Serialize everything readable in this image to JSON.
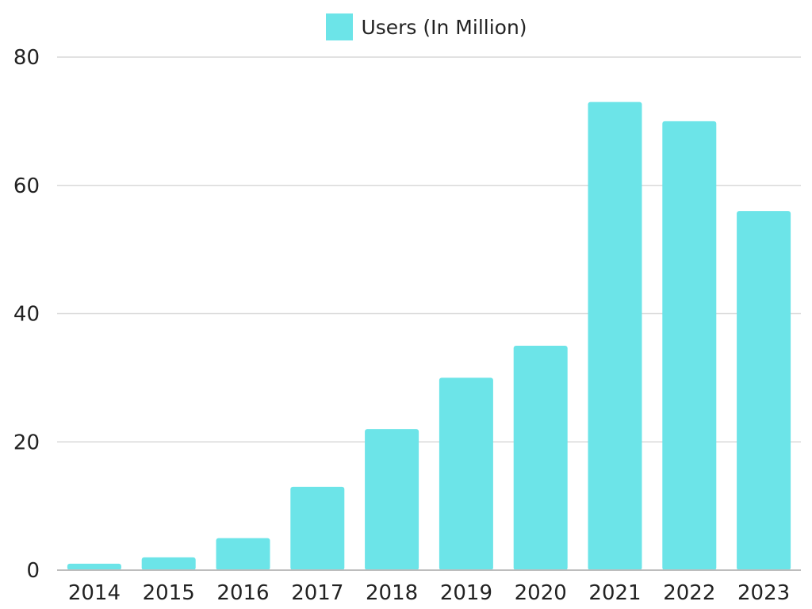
{
  "chart_data": {
    "type": "bar",
    "categories": [
      "2014",
      "2015",
      "2016",
      "2017",
      "2018",
      "2019",
      "2020",
      "2021",
      "2022",
      "2023"
    ],
    "series": [
      {
        "name": "Users (In Million)",
        "values": [
          1,
          2,
          5,
          13,
          22,
          30,
          35,
          73,
          70,
          56
        ]
      }
    ],
    "title": "",
    "xlabel": "",
    "ylabel": "",
    "ylim": [
      0,
      80
    ],
    "yticks": [
      "0",
      "20",
      "40",
      "60",
      "80"
    ],
    "grid": true,
    "legend_position": "top-center",
    "colors": {
      "bar": "#6ce4e8",
      "grid": "#d9d9d9",
      "axis": "#bdbdbd",
      "text": "#222222"
    }
  }
}
